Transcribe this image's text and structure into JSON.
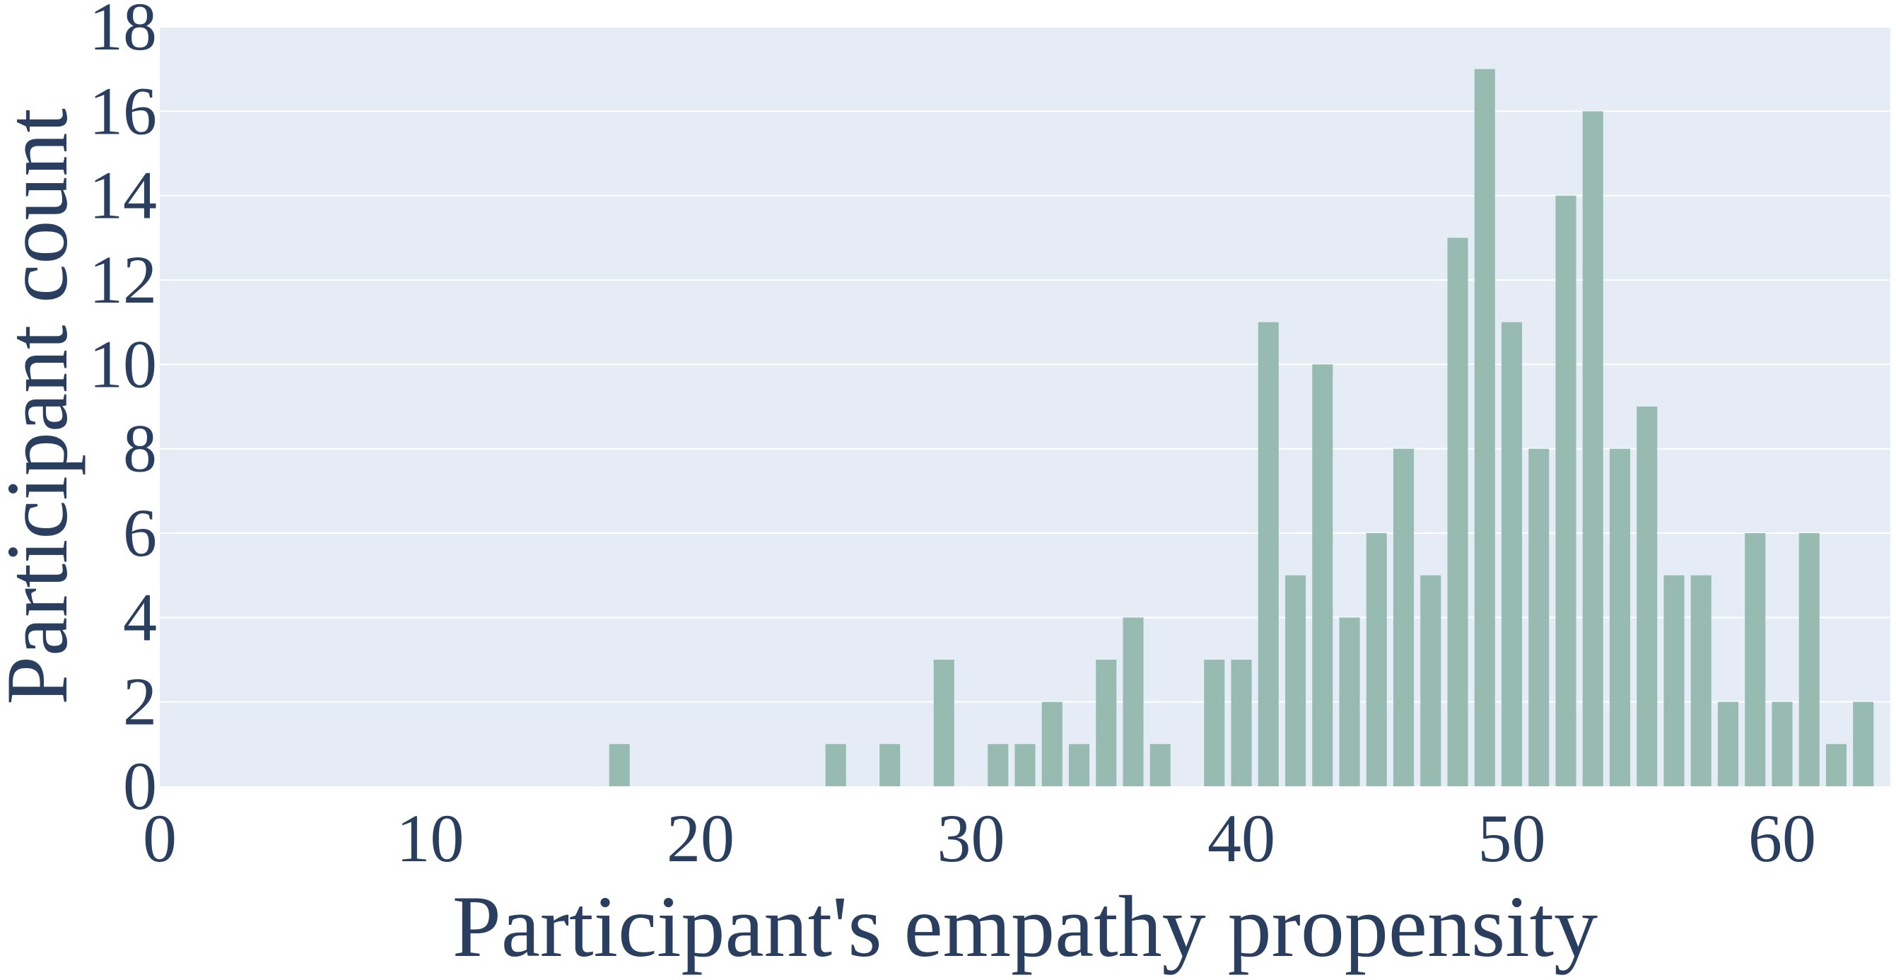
{
  "chart_data": {
    "type": "bar",
    "title": "",
    "xlabel": "Participant's empathy propensity",
    "ylabel": "Participant count",
    "xlim": [
      0,
      64
    ],
    "ylim": [
      0,
      18
    ],
    "x_ticks": [
      0,
      10,
      20,
      30,
      40,
      50,
      60
    ],
    "y_ticks": [
      0,
      2,
      4,
      6,
      8,
      10,
      12,
      14,
      16,
      18
    ],
    "grid": true,
    "legend": "none",
    "colors": {
      "plot_background": "#e5ecf6",
      "bar": "#98bbb1",
      "grid": "#ffffff",
      "text": "#2a3f5f"
    },
    "x": [
      17,
      25,
      27,
      29,
      31,
      32,
      33,
      34,
      35,
      36,
      37,
      39,
      40,
      41,
      42,
      43,
      44,
      45,
      46,
      47,
      48,
      49,
      50,
      51,
      52,
      53,
      54,
      55,
      56,
      57,
      58,
      59,
      60,
      61,
      62,
      63
    ],
    "values": [
      1,
      1,
      1,
      3,
      1,
      1,
      2,
      1,
      3,
      4,
      1,
      3,
      3,
      11,
      5,
      10,
      4,
      6,
      8,
      5,
      13,
      17,
      11,
      8,
      14,
      16,
      8,
      9,
      5,
      5,
      2,
      6,
      2,
      6,
      1,
      2
    ]
  }
}
